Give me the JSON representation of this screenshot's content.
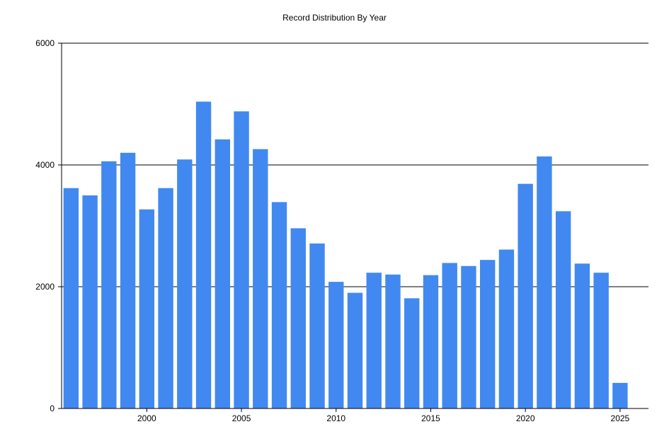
{
  "chart_data": {
    "type": "bar",
    "title": "Record Distribution By Year",
    "xlabel": "",
    "ylabel": "",
    "x": [
      1996,
      1997,
      1998,
      1999,
      2000,
      2001,
      2002,
      2003,
      2004,
      2005,
      2006,
      2007,
      2008,
      2009,
      2010,
      2011,
      2012,
      2013,
      2014,
      2015,
      2016,
      2017,
      2018,
      2019,
      2020,
      2021,
      2022,
      2023,
      2024,
      2025
    ],
    "values": [
      3620,
      3500,
      4060,
      4200,
      3270,
      3620,
      4090,
      5040,
      4420,
      4880,
      4260,
      3390,
      2960,
      2710,
      2080,
      1900,
      2230,
      2200,
      1810,
      2190,
      2390,
      2340,
      2440,
      2610,
      3690,
      4140,
      3240,
      2380,
      2230,
      420
    ],
    "xlim": [
      1995.5,
      2026.5
    ],
    "ylim": [
      0,
      6000
    ],
    "x_ticks": [
      "2000",
      "2005",
      "2010",
      "2015",
      "2020",
      "2025"
    ],
    "y_ticks": [
      "0",
      "2000",
      "4000",
      "6000"
    ],
    "grid": true,
    "legend": "none",
    "bar_color": "#4189f0"
  }
}
